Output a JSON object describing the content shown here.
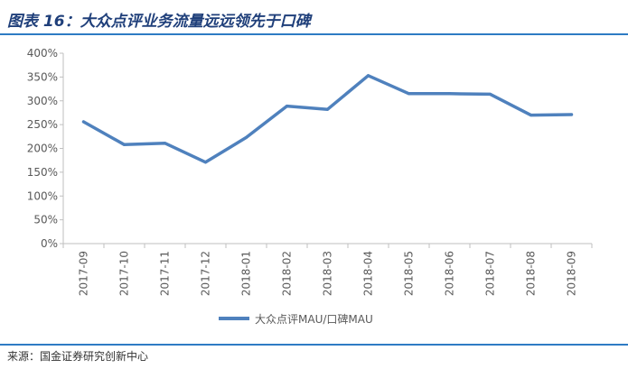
{
  "figure_title": "图表 16：大众点评业务流量远远领先于口碑",
  "source": "来源：国金证券研究创新中心",
  "colors": {
    "series": "#4f81bd",
    "rule": "#2e7bc4",
    "title": "#1f3f7a"
  },
  "chart_data": {
    "type": "line",
    "title": "",
    "xlabel": "",
    "ylabel": "",
    "categories": [
      "2017-09",
      "2017-10",
      "2017-11",
      "2017-12",
      "2018-01",
      "2018-02",
      "2018-03",
      "2018-04",
      "2018-05",
      "2018-06",
      "2018-07",
      "2018-08",
      "2018-09"
    ],
    "yticks": [
      "0%",
      "50%",
      "100%",
      "150%",
      "200%",
      "250%",
      "300%",
      "350%",
      "400%"
    ],
    "ylim": [
      0,
      400
    ],
    "grid": false,
    "legend_position": "bottom",
    "series": [
      {
        "name": "大众点评MAU/口碑MAU",
        "values": [
          256,
          208,
          211,
          171,
          223,
          289,
          282,
          353,
          315,
          315,
          314,
          270,
          271
        ]
      }
    ]
  }
}
